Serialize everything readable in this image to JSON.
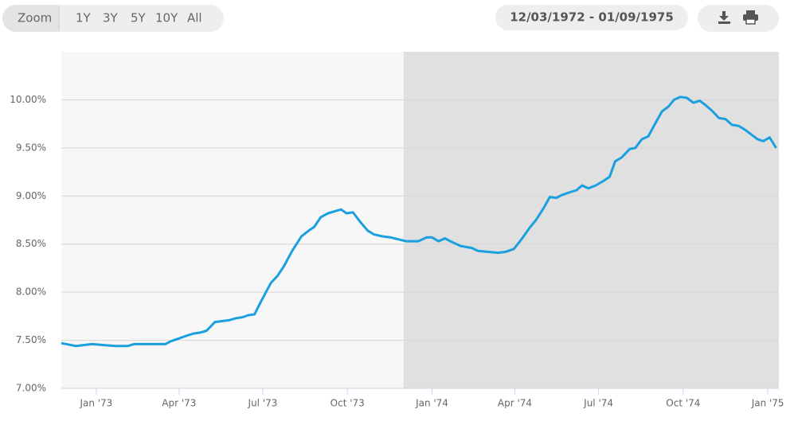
{
  "ui": {
    "zoom_label": "Zoom",
    "zoom_buttons": [
      "1Y",
      "3Y",
      "5Y",
      "10Y",
      "All"
    ],
    "date_range": "12/03/1972 - 01/09/1975"
  },
  "chart_data": {
    "type": "line",
    "x": [
      "1972-11-24",
      "1972-12-10",
      "1972-12-27",
      "1973-01-22",
      "1973-02-04",
      "1973-02-11",
      "1973-03-17",
      "1973-03-23",
      "1973-04-01",
      "1973-04-10",
      "1973-04-17",
      "1973-04-24",
      "1973-05-01",
      "1973-05-10",
      "1973-05-26",
      "1973-06-02",
      "1973-06-09",
      "1973-06-15",
      "1973-06-22",
      "1973-07-01",
      "1973-07-10",
      "1973-07-17",
      "1973-07-24",
      "1973-08-02",
      "1973-08-12",
      "1973-08-20",
      "1973-08-26",
      "1973-09-02",
      "1973-09-10",
      "1973-09-17",
      "1973-09-24",
      "1973-09-30",
      "1973-10-07",
      "1973-10-15",
      "1973-10-23",
      "1973-10-30",
      "1973-11-08",
      "1973-11-17",
      "1973-11-25",
      "1973-12-04",
      "1973-12-17",
      "1973-12-26",
      "1974-01-01",
      "1974-01-08",
      "1974-01-15",
      "1974-01-23",
      "1974-02-01",
      "1974-02-13",
      "1974-02-20",
      "1974-03-02",
      "1974-03-14",
      "1974-03-22",
      "1974-03-31",
      "1974-04-09",
      "1974-04-17",
      "1974-04-24",
      "1974-05-02",
      "1974-05-09",
      "1974-05-16",
      "1974-05-22",
      "1974-05-31",
      "1974-06-07",
      "1974-06-13",
      "1974-06-20",
      "1974-06-28",
      "1974-07-07",
      "1974-07-13",
      "1974-07-19",
      "1974-07-26",
      "1974-08-04",
      "1974-08-10",
      "1974-08-17",
      "1974-08-24",
      "1974-09-01",
      "1974-09-08",
      "1974-09-15",
      "1974-09-21",
      "1974-09-28",
      "1974-10-05",
      "1974-10-12",
      "1974-10-19",
      "1974-10-26",
      "1974-11-02",
      "1974-11-09",
      "1974-11-16",
      "1974-11-23",
      "1974-11-30",
      "1974-12-07",
      "1974-12-14",
      "1974-12-21",
      "1974-12-27",
      "1975-01-03",
      "1975-01-10"
    ],
    "series": [
      {
        "color": "#1a9fdf",
        "values": [
          7.47,
          7.44,
          7.46,
          7.44,
          7.44,
          7.46,
          7.46,
          7.49,
          7.52,
          7.55,
          7.57,
          7.58,
          7.6,
          7.69,
          7.71,
          7.73,
          7.74,
          7.76,
          7.77,
          7.94,
          8.1,
          8.17,
          8.27,
          8.43,
          8.58,
          8.64,
          8.68,
          8.78,
          8.82,
          8.84,
          8.86,
          8.82,
          8.83,
          8.73,
          8.64,
          8.6,
          8.58,
          8.57,
          8.55,
          8.53,
          8.53,
          8.57,
          8.57,
          8.53,
          8.56,
          8.52,
          8.48,
          8.46,
          8.43,
          8.42,
          8.41,
          8.42,
          8.45,
          8.56,
          8.67,
          8.75,
          8.87,
          8.99,
          8.98,
          9.01,
          9.04,
          9.06,
          9.11,
          9.08,
          9.11,
          9.16,
          9.2,
          9.36,
          9.4,
          9.49,
          9.5,
          9.59,
          9.62,
          9.76,
          9.88,
          9.93,
          10.0,
          10.03,
          10.02,
          9.97,
          9.99,
          9.94,
          9.88,
          9.81,
          9.8,
          9.74,
          9.73,
          9.69,
          9.64,
          9.59,
          9.57,
          9.61,
          9.5
        ]
      }
    ],
    "xlim": [
      "1972-11-24",
      "1975-01-13"
    ],
    "xticks": [
      {
        "value": "1973-01-01",
        "label": "Jan '73"
      },
      {
        "value": "1973-04-01",
        "label": "Apr '73"
      },
      {
        "value": "1973-07-01",
        "label": "Jul '73"
      },
      {
        "value": "1973-10-01",
        "label": "Oct '73"
      },
      {
        "value": "1974-01-01",
        "label": "Jan '74"
      },
      {
        "value": "1974-04-01",
        "label": "Apr '74"
      },
      {
        "value": "1974-07-01",
        "label": "Jul '74"
      },
      {
        "value": "1974-10-01",
        "label": "Oct '74"
      },
      {
        "value": "1975-01-01",
        "label": "Jan '75"
      }
    ],
    "ylim": [
      7,
      10.5
    ],
    "yticks": [
      {
        "value": 7,
        "label": "7.00%"
      },
      {
        "value": 7.5,
        "label": "7.50%"
      },
      {
        "value": 8,
        "label": "8.00%"
      },
      {
        "value": 8.5,
        "label": "8.50%"
      },
      {
        "value": 9,
        "label": "9.00%"
      },
      {
        "value": 9.5,
        "label": "9.50%"
      },
      {
        "value": 10,
        "label": "10.00%"
      }
    ],
    "grid": true,
    "plot_band": {
      "from": "1973-12-01",
      "to": "1975-01-13",
      "color": "#e0e0e0"
    }
  }
}
